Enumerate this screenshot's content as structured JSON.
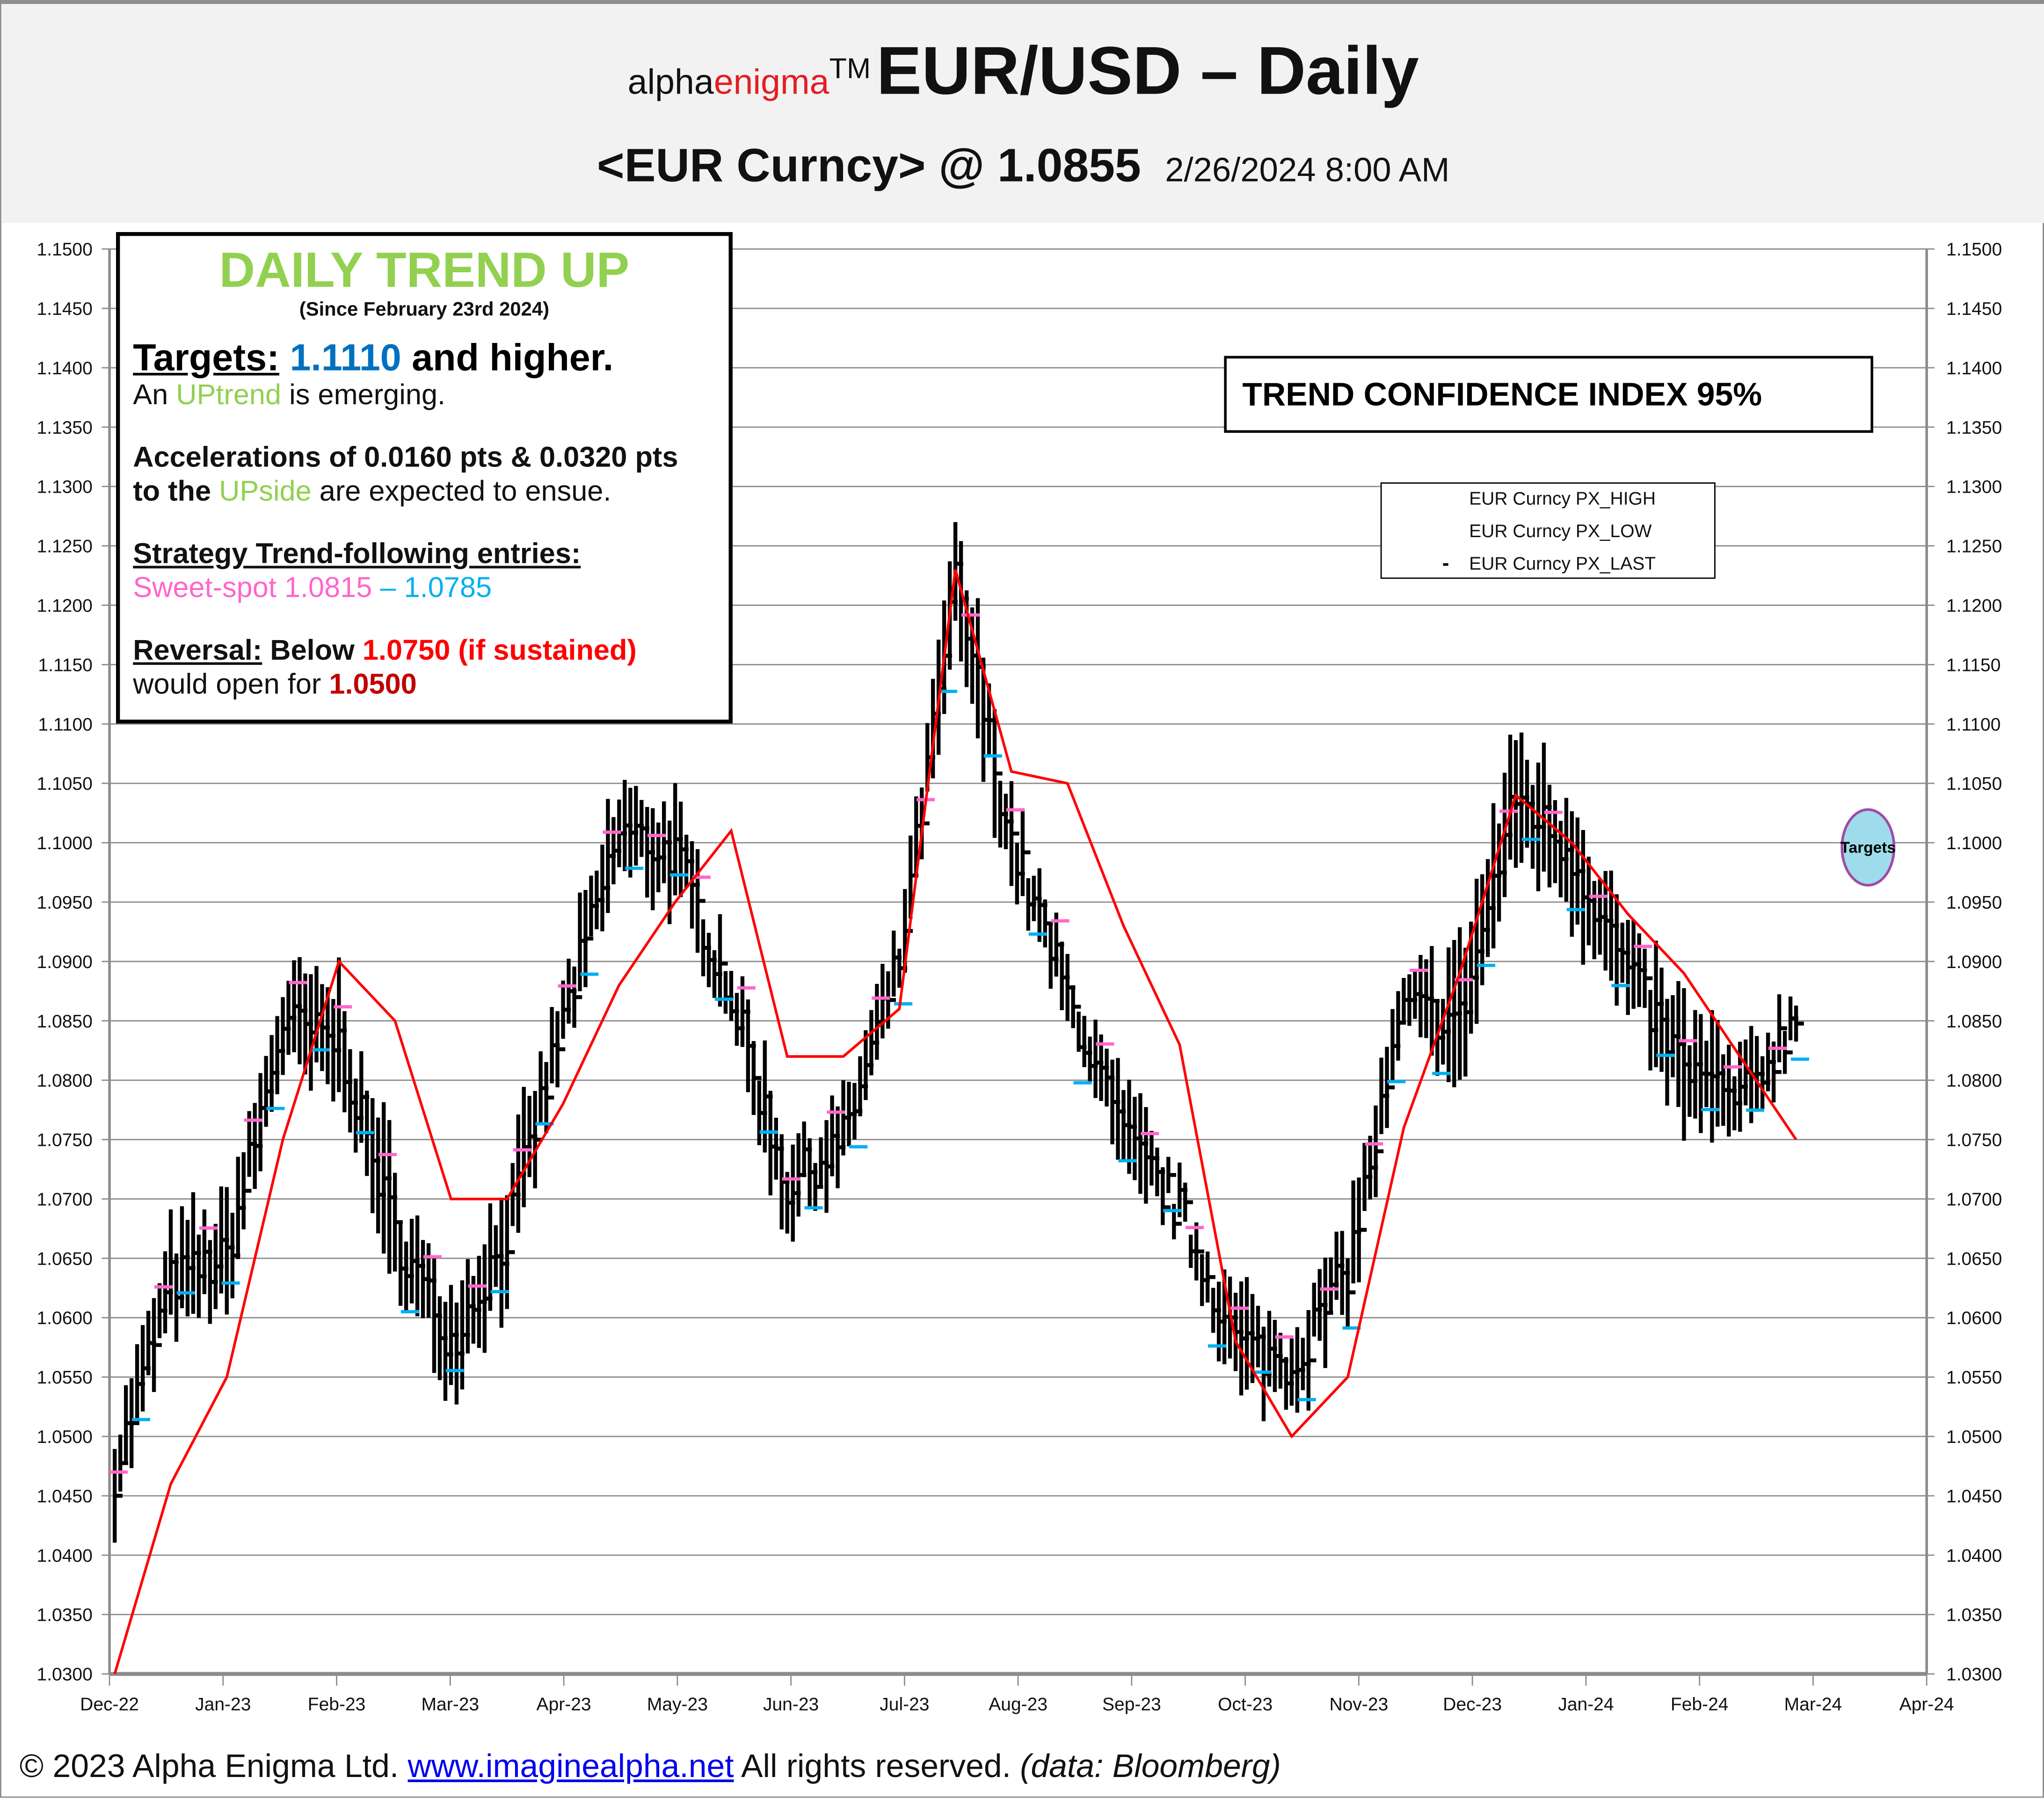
{
  "header": {
    "brand_prefix": "alpha",
    "brand_suffix": "enigma",
    "trademark": "TM",
    "title": "EUR/USD – Daily",
    "instrument": "<EUR Curncy> @ 1.0855",
    "timestamp": "2/26/2024 8:00 AM"
  },
  "info_box": {
    "trend_heading": "DAILY TREND UP",
    "since": "(Since February 23rd 2024)",
    "targets_label": "Targets:",
    "targets_value": "1.1110",
    "targets_suffix": " and higher.",
    "uptrend_prefix": "An  ",
    "uptrend_word": "UPtrend",
    "uptrend_suffix": " is emerging.",
    "accel_line1": "Accelerations of 0.0160 pts & 0.0320 pts",
    "accel_line2_prefix": "to the ",
    "accel_line2_word": "UPside",
    "accel_line2_suffix": " are expected to ensue.",
    "strategy_label": "Strategy Trend-following entries:",
    "sweetspot_label": "Sweet-spot 1.0815",
    "sweetspot_dash": " – ",
    "sweetspot_low": "1.0785",
    "reversal_label": "Reversal:",
    "reversal_below": " Below ",
    "reversal_level": "1.0750 (if sustained)",
    "reversal_line2_prefix": "would open for ",
    "reversal_target": "1.0500"
  },
  "trend_confidence": "TREND CONFIDENCE INDEX 95%",
  "legend": {
    "items": [
      {
        "label": "EUR Curncy PX_HIGH"
      },
      {
        "label": "EUR Curncy PX_LOW"
      },
      {
        "label": "EUR Curncy PX_LAST",
        "marker": "-"
      }
    ]
  },
  "targets_bubble": "Targets",
  "footer": {
    "copyright": "© 2023 Alpha Enigma Ltd. ",
    "link": "www.imaginealpha.net",
    "rights": " All rights reserved. ",
    "source": "(data: Bloomberg)"
  },
  "colors": {
    "trend_green": "#92d050",
    "target_blue": "#0070c0",
    "sweet_pink": "#ff66cc",
    "sweet_cyan": "#00b0f0",
    "reversal_red": "#ff0000",
    "reversal_target_red": "#c00000",
    "trail_line": "#ff0000",
    "bars": "#000000",
    "grid": "#8c8c8c"
  },
  "chart_data": {
    "type": "line",
    "title": "EUR/USD – Daily",
    "subtitle": "<EUR Curncy> @ 1.0855  2/26/2024 8:00 AM",
    "xlabel": "",
    "ylabel": "",
    "ylim": [
      1.03,
      1.15
    ],
    "y_ticks": [
      "1.0300",
      "1.0350",
      "1.0400",
      "1.0450",
      "1.0500",
      "1.0550",
      "1.0600",
      "1.0650",
      "1.0700",
      "1.0750",
      "1.0800",
      "1.0850",
      "1.0900",
      "1.0950",
      "1.1000",
      "1.1050",
      "1.1100",
      "1.1150",
      "1.1200",
      "1.1250",
      "1.1300",
      "1.1350",
      "1.1400",
      "1.1450",
      "1.1500"
    ],
    "x_ticks": [
      "Dec-22",
      "Jan-23",
      "Feb-23",
      "Mar-23",
      "Apr-23",
      "May-23",
      "Jun-23",
      "Jul-23",
      "Aug-23",
      "Sep-23",
      "Oct-23",
      "Nov-23",
      "Dec-23",
      "Jan-24",
      "Feb-24",
      "Mar-24",
      "Apr-24"
    ],
    "grid": true,
    "legend_position": "upper right (inside plot)",
    "legend": [
      "EUR Curncy PX_HIGH",
      "EUR Curncy PX_LOW",
      "EUR Curncy PX_LAST"
    ],
    "annotations": [
      "DAILY TREND UP",
      "TREND CONFIDENCE INDEX 95%",
      "Targets"
    ],
    "x": [
      "Dec-22",
      "mid Dec-22",
      "Jan-23",
      "mid Jan-23",
      "Feb-23",
      "mid Feb-23",
      "Mar-23",
      "mid Mar-23",
      "Apr-23",
      "mid Apr-23",
      "May-23",
      "mid May-23",
      "Jun-23",
      "mid Jun-23",
      "Jul-23",
      "mid Jul-23",
      "Aug-23",
      "mid Aug-23",
      "Sep-23",
      "mid Sep-23",
      "Oct-23",
      "mid Oct-23",
      "Nov-23",
      "mid Nov-23",
      "Dec-23",
      "mid Dec-23",
      "Jan-24",
      "mid Jan-24",
      "Feb-24",
      "mid Feb-24",
      "late Feb-24"
    ],
    "series": [
      {
        "name": "EUR Curncy PX_HIGH",
        "values": [
          1.054,
          1.072,
          1.071,
          1.087,
          1.103,
          1.087,
          1.068,
          1.075,
          1.091,
          1.107,
          1.109,
          1.1,
          1.083,
          1.08,
          1.094,
          1.127,
          1.111,
          1.097,
          1.093,
          1.075,
          1.063,
          1.066,
          1.074,
          1.089,
          1.101,
          1.11,
          1.113,
          1.098,
          1.094,
          1.086,
          1.089
        ]
      },
      {
        "name": "EUR Curncy PX_LOW",
        "values": [
          1.039,
          1.054,
          1.049,
          1.068,
          1.079,
          1.062,
          1.052,
          1.054,
          1.077,
          1.088,
          1.091,
          1.085,
          1.064,
          1.067,
          1.082,
          1.098,
          1.094,
          1.085,
          1.072,
          1.066,
          1.045,
          1.05,
          1.055,
          1.078,
          1.075,
          1.085,
          1.089,
          1.081,
          1.07,
          1.069,
          1.08
        ]
      },
      {
        "name": "EUR Curncy PX_LAST",
        "values": [
          1.047,
          1.063,
          1.065,
          1.085,
          1.083,
          1.067,
          1.058,
          1.067,
          1.085,
          1.101,
          1.099,
          1.087,
          1.071,
          1.075,
          1.09,
          1.122,
          1.1,
          1.087,
          1.075,
          1.069,
          1.058,
          1.056,
          1.064,
          1.086,
          1.085,
          1.104,
          1.099,
          1.089,
          1.081,
          1.078,
          1.0855
        ]
      },
      {
        "name": "Trailing stop (red)",
        "values": [
          1.03,
          1.046,
          1.055,
          1.075,
          1.09,
          1.085,
          1.07,
          1.07,
          1.078,
          1.088,
          1.095,
          1.101,
          1.082,
          1.082,
          1.086,
          1.123,
          1.106,
          1.105,
          1.093,
          1.083,
          1.058,
          1.05,
          1.055,
          1.076,
          1.089,
          1.104,
          1.1,
          1.094,
          1.089,
          1.082,
          1.075
        ]
      }
    ]
  }
}
